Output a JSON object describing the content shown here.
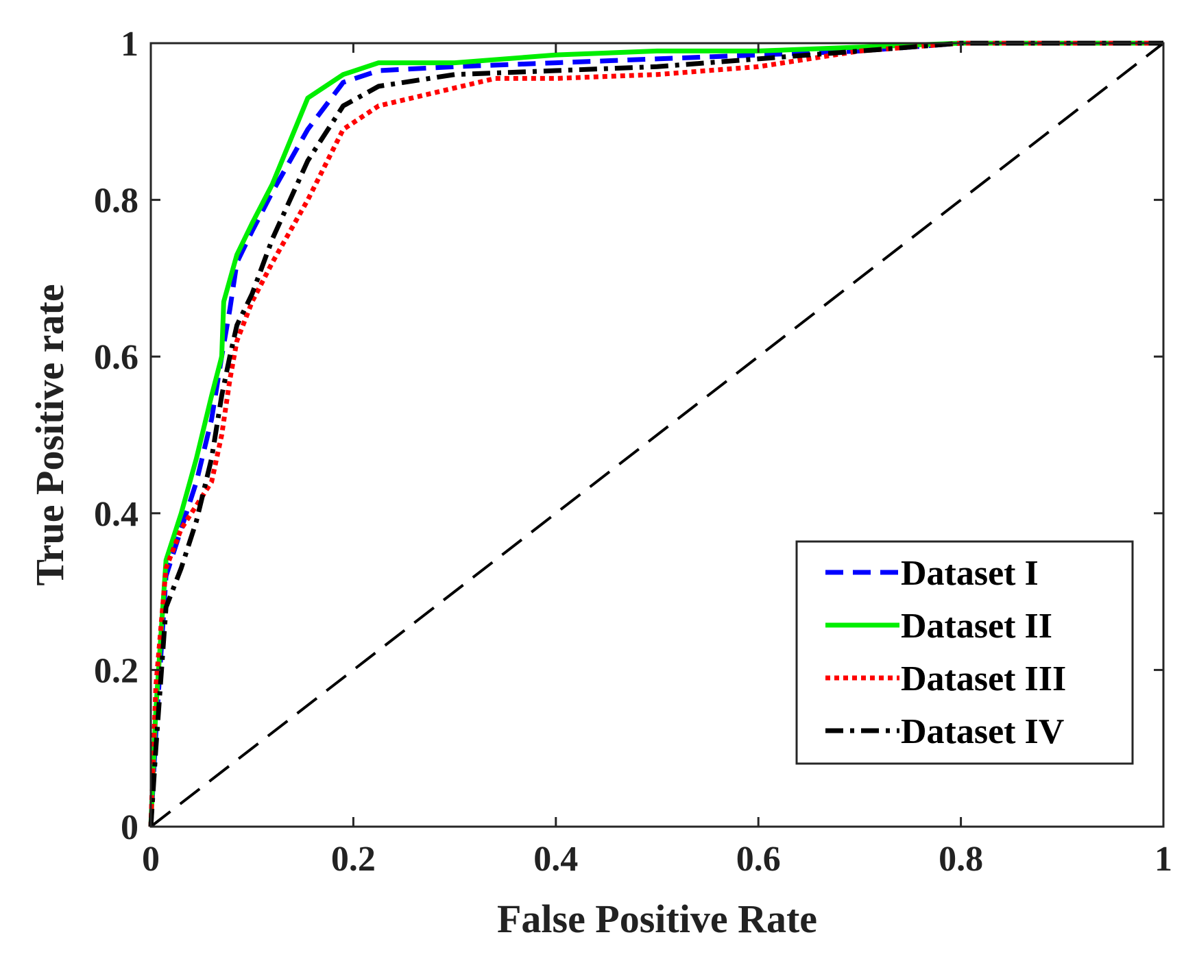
{
  "chart_data": {
    "type": "line",
    "title": "",
    "xlabel": "False Positive Rate",
    "ylabel": "True Positive rate",
    "xlim": [
      0,
      1
    ],
    "ylim": [
      0,
      1
    ],
    "xticks": [
      "0",
      "0.2",
      "0.4",
      "0.6",
      "0.8",
      "1"
    ],
    "yticks": [
      "0",
      "0.2",
      "0.4",
      "0.6",
      "0.8",
      "1"
    ],
    "grid": false,
    "legend_position": "bottom-right",
    "series": [
      {
        "name": "Dataset I",
        "color": "#0000ff",
        "style": "dashed",
        "x": [
          0,
          0.005,
          0.015,
          0.03,
          0.045,
          0.06,
          0.07,
          0.078,
          0.085,
          0.1,
          0.12,
          0.155,
          0.19,
          0.225,
          0.3,
          0.4,
          0.5,
          0.6,
          0.7,
          0.8,
          1
        ],
        "y": [
          0,
          0.12,
          0.32,
          0.38,
          0.44,
          0.52,
          0.6,
          0.66,
          0.72,
          0.76,
          0.81,
          0.89,
          0.95,
          0.965,
          0.97,
          0.975,
          0.98,
          0.985,
          0.99,
          1,
          1
        ]
      },
      {
        "name": "Dataset II",
        "color": "#00ee00",
        "style": "solid",
        "x": [
          0,
          0.005,
          0.015,
          0.03,
          0.045,
          0.06,
          0.07,
          0.072,
          0.085,
          0.1,
          0.12,
          0.155,
          0.19,
          0.225,
          0.3,
          0.4,
          0.5,
          0.6,
          0.7,
          0.8,
          1
        ],
        "y": [
          0,
          0.15,
          0.34,
          0.4,
          0.47,
          0.55,
          0.6,
          0.67,
          0.73,
          0.77,
          0.82,
          0.93,
          0.96,
          0.975,
          0.975,
          0.985,
          0.99,
          0.99,
          0.995,
          1,
          1
        ]
      },
      {
        "name": "Dataset III",
        "color": "#ff0000",
        "style": "dotted",
        "x": [
          0,
          0.005,
          0.015,
          0.03,
          0.045,
          0.06,
          0.07,
          0.078,
          0.085,
          0.1,
          0.12,
          0.155,
          0.19,
          0.225,
          0.34,
          0.4,
          0.5,
          0.6,
          0.7,
          0.8,
          1
        ],
        "y": [
          0,
          0.18,
          0.33,
          0.38,
          0.41,
          0.44,
          0.5,
          0.57,
          0.62,
          0.67,
          0.72,
          0.8,
          0.89,
          0.92,
          0.955,
          0.955,
          0.96,
          0.97,
          0.99,
          1,
          1
        ]
      },
      {
        "name": "Dataset IV",
        "color": "#000000",
        "style": "dashdot",
        "x": [
          0,
          0.005,
          0.015,
          0.03,
          0.045,
          0.06,
          0.07,
          0.078,
          0.085,
          0.1,
          0.12,
          0.155,
          0.19,
          0.225,
          0.3,
          0.4,
          0.5,
          0.6,
          0.7,
          0.8,
          1
        ],
        "y": [
          0,
          0.1,
          0.28,
          0.33,
          0.39,
          0.47,
          0.55,
          0.6,
          0.64,
          0.68,
          0.75,
          0.85,
          0.92,
          0.945,
          0.96,
          0.965,
          0.97,
          0.98,
          0.99,
          1,
          1
        ]
      }
    ],
    "reference_line": {
      "x": [
        0,
        1
      ],
      "y": [
        0,
        1
      ],
      "color": "#000000",
      "style": "dashed"
    }
  }
}
